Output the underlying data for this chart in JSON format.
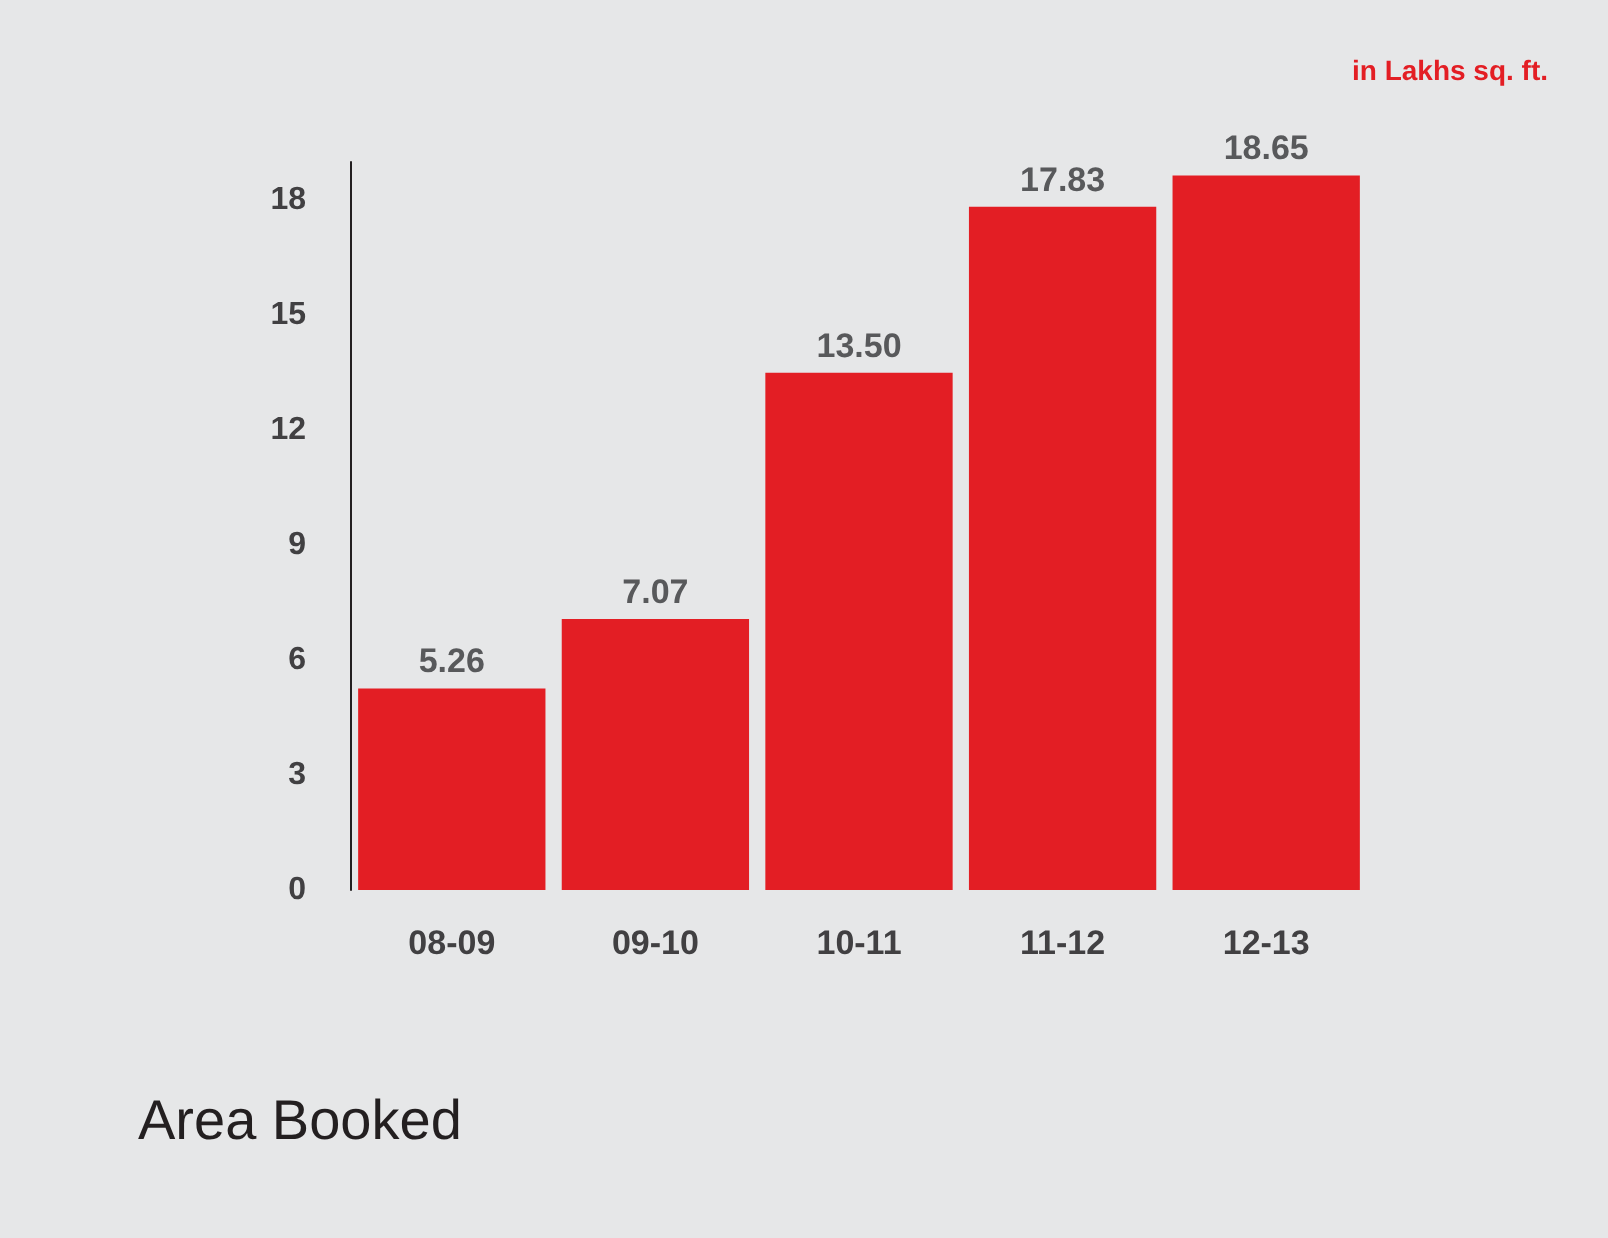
{
  "chart_data": {
    "type": "bar",
    "title": "Area Booked",
    "annotations": [
      "in Lakhs sq. ft."
    ],
    "categories": [
      "08-09",
      "09-10",
      "10-11",
      "11-12",
      "12-13"
    ],
    "values": [
      5.26,
      7.07,
      13.5,
      17.83,
      18.65
    ],
    "value_labels": [
      "5.26",
      "7.07",
      "13.50",
      "17.83",
      "18.65"
    ],
    "color": "#e31e24",
    "ylim": [
      0,
      19
    ],
    "yticks": [
      0,
      3,
      6,
      9,
      12,
      15,
      18
    ],
    "grid": false
  }
}
